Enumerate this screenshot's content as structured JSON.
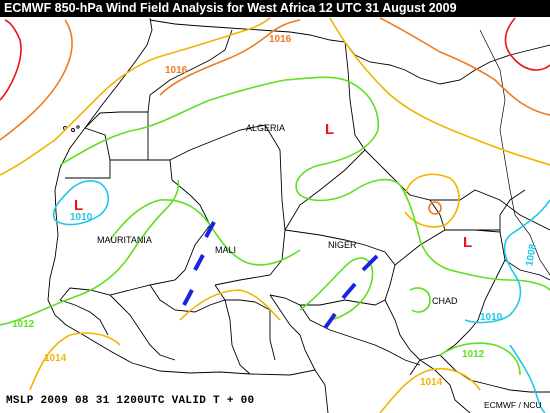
{
  "title": "ECMWF 850-hPa Wind Field Analysis for West Africa  12 UTC 31 August 2009",
  "footer": {
    "valid_text": "MSLP 2009 08 31 1200UTC VALID T + 00",
    "credit": "ECMWF / NCU"
  },
  "countries": {
    "algeria": "ALGERIA",
    "mauritania": "MAURITANIA",
    "mali": "MALI",
    "niger": "NIGER",
    "chad": "CHAD"
  },
  "lows": {
    "algeria": "L",
    "mauritania": "L",
    "chad": "L"
  },
  "isobars": {
    "l1016_north": "1016",
    "l1016_west": "1016",
    "l1010_mauritania": "1010",
    "l1012_west": "1012",
    "l1014_southwest": "1014",
    "l1008_east": "1008",
    "l1010_chad": "1010",
    "l1012_chad": "1012",
    "l1014_south": "1014"
  },
  "colors": {
    "background": "#ffffff",
    "title_bar": "#000000",
    "isobar_red": "#e8141a",
    "isobar_orange": "#f07a1e",
    "isobar_yellow": "#f2b400",
    "isobar_green": "#5ee01e",
    "isobar_cyan": "#1ec8e6",
    "trough": "#1a22e6",
    "border": "#000000"
  }
}
